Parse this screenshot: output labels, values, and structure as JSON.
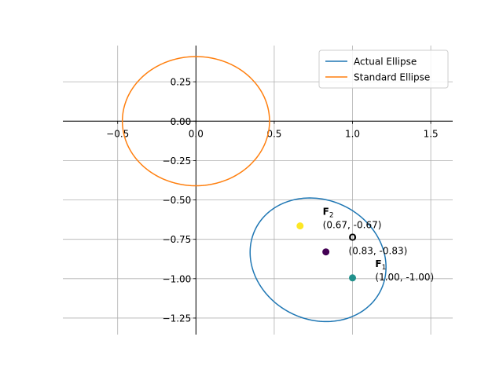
{
  "chart_data": {
    "type": "line",
    "title": "",
    "xlabel": "",
    "ylabel": "",
    "xlim": [
      -0.85,
      1.64
    ],
    "ylim": [
      -1.355,
      0.48
    ],
    "grid": true,
    "legend_position": "top-right",
    "x_ticks": [
      {
        "value": -0.5,
        "label": "−0.5"
      },
      {
        "value": 0.0,
        "label": "0.0"
      },
      {
        "value": 0.5,
        "label": "0.5"
      },
      {
        "value": 1.0,
        "label": "1.0"
      },
      {
        "value": 1.5,
        "label": "1.5"
      }
    ],
    "y_ticks": [
      {
        "value": 0.25,
        "label": "0.25"
      },
      {
        "value": 0.0,
        "label": "0.00"
      },
      {
        "value": -0.25,
        "label": "−0.25"
      },
      {
        "value": -0.5,
        "label": "−0.50"
      },
      {
        "value": -0.75,
        "label": "−0.75"
      },
      {
        "value": -1.0,
        "label": "−1.00"
      },
      {
        "value": -1.25,
        "label": "−1.25"
      }
    ],
    "series": [
      {
        "name": "Actual Ellipse",
        "color": "#1f77b4",
        "shape": "ellipse",
        "center": [
          0.78,
          -0.88
        ],
        "semi_axes": [
          0.445,
          0.38
        ],
        "rotation_deg": -25
      },
      {
        "name": "Standard Ellipse",
        "color": "#ff7f0e",
        "shape": "ellipse",
        "center": [
          0.0,
          0.0
        ],
        "semi_axes": [
          0.47,
          0.41
        ],
        "rotation_deg": 0
      }
    ],
    "points": [
      {
        "id": "F2",
        "name": "F",
        "sub": "2",
        "coord_label": "(0.67, -0.67)",
        "x": 0.665,
        "y": -0.665,
        "color": "#fde725",
        "label_dx": 0.145,
        "label_dy": 0.07
      },
      {
        "id": "O",
        "name": "O",
        "sub": "",
        "coord_label": "(0.83, -0.83)",
        "x": 0.83,
        "y": -0.83,
        "color": "#440154",
        "label_dx": 0.145,
        "label_dy": 0.07
      },
      {
        "id": "F1",
        "name": "F",
        "sub": "1",
        "coord_label": "(1.00, -1.00)",
        "x": 1.0,
        "y": -0.995,
        "color": "#21918c",
        "label_dx": 0.145,
        "label_dy": 0.07
      }
    ]
  }
}
